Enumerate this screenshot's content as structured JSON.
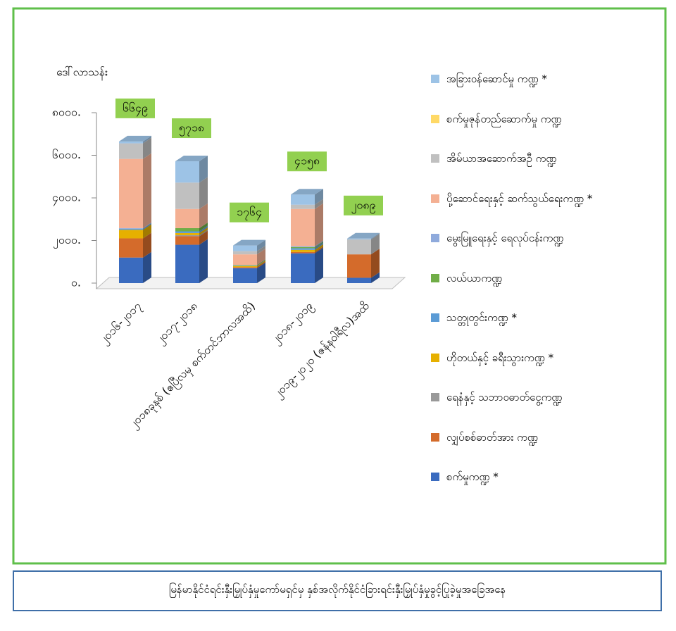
{
  "chart_data": {
    "type": "bar3d_stacked",
    "title": "မြန်မာနိုင်ငံရင်းနှီးမြှုပ်နှံမှုကော်မရှင်မှ နှစ်အလိုက်နိုင်ငံခြားရင်းနှီးမြှုပ်နှံမှုခွင့်ပြုခဲ့မှုအခြေအနေ",
    "ylabel": "ဒေါ်လာသန်း",
    "categories": [
      "၂၀၁၆-၂၀၁၇",
      "၂၀၁၇-၂၀၁၈",
      "၂၀၁၈ခုနှစ် (ဧပြီလမှ စက်တင်ဘာလအထိ)",
      "၂၀၁၈-၂၀၁၉",
      "၂၀၁၉-၂၀၂၀ (ဇန်နဝါရီလ)အထိ"
    ],
    "ylim": [
      0,
      8000
    ],
    "yticks": [
      {
        "value": 0,
        "label": "၀."
      },
      {
        "value": 2000,
        "label": "၂၀၀၀."
      },
      {
        "value": 4000,
        "label": "၄၀၀၀."
      },
      {
        "value": 6000,
        "label": "၆၀၀၀."
      },
      {
        "value": 8000,
        "label": "၈၀၀၀."
      }
    ],
    "totals": [
      {
        "value": 6649,
        "label": "၆၆၄၉"
      },
      {
        "value": 5718,
        "label": "၅၇၁၈"
      },
      {
        "value": 1764,
        "label": "၁၇၆၄"
      },
      {
        "value": 4158,
        "label": "၄၁၅၈"
      },
      {
        "value": 2089,
        "label": "၂၀၈၉"
      }
    ],
    "series": [
      {
        "name": "အခြားဝန်ဆောင်မှု ကဏ္ဍ *",
        "color": "#9dc3e6",
        "values": [
          89,
          1000,
          264,
          478,
          39
        ]
      },
      {
        "name": "စက်မှုဇုန်တည်ဆောက်မှု ကဏ္ဍ",
        "color": "#ffd966",
        "values": [
          0,
          0,
          0,
          0,
          0
        ]
      },
      {
        "name": "အိမ်ယာအဆောက်အဦ ကဏ္ဍ",
        "color": "#c0c0c0",
        "values": [
          730,
          1238,
          150,
          200,
          700
        ]
      },
      {
        "name": "ပို့ဆောင်ရေးနှင့် ဆက်သွယ်ရေးကဏ္ဍ *",
        "color": "#f4b093",
        "values": [
          3250,
          900,
          500,
          1750,
          0
        ]
      },
      {
        "name": "မွေးမြူရေးနှင့် ရေလုပ်ငန်းကဏ္ဍ",
        "color": "#8faadc",
        "values": [
          30,
          0,
          0,
          40,
          0
        ]
      },
      {
        "name": "လယ်ယာကဏ္ဍ",
        "color": "#70ad47",
        "values": [
          0,
          150,
          30,
          50,
          0
        ]
      },
      {
        "name": "သတ္တုတွင်းကဏ္ဍ *",
        "color": "#5b9bd5",
        "values": [
          50,
          80,
          20,
          80,
          0
        ]
      },
      {
        "name": "ဟိုတယ်နှင့် ခရီးသွားကဏ္ဍ *",
        "color": "#e6b000",
        "values": [
          400,
          100,
          50,
          100,
          0
        ]
      },
      {
        "name": "ရေနံနှင့် သဘာဝဓာတ်ငွေ့ကဏ္ဍ",
        "color": "#999999",
        "values": [
          0,
          50,
          0,
          0,
          0
        ]
      },
      {
        "name": "လျှပ်စစ်ဓာတ်အား ကဏ္ဍ",
        "color": "#d46b2b",
        "values": [
          900,
          400,
          50,
          60,
          1100
        ]
      },
      {
        "name": "စက်မှုကဏ္ဍ *",
        "color": "#3a6bbf",
        "values": [
          1200,
          1800,
          700,
          1400,
          250
        ]
      }
    ]
  }
}
